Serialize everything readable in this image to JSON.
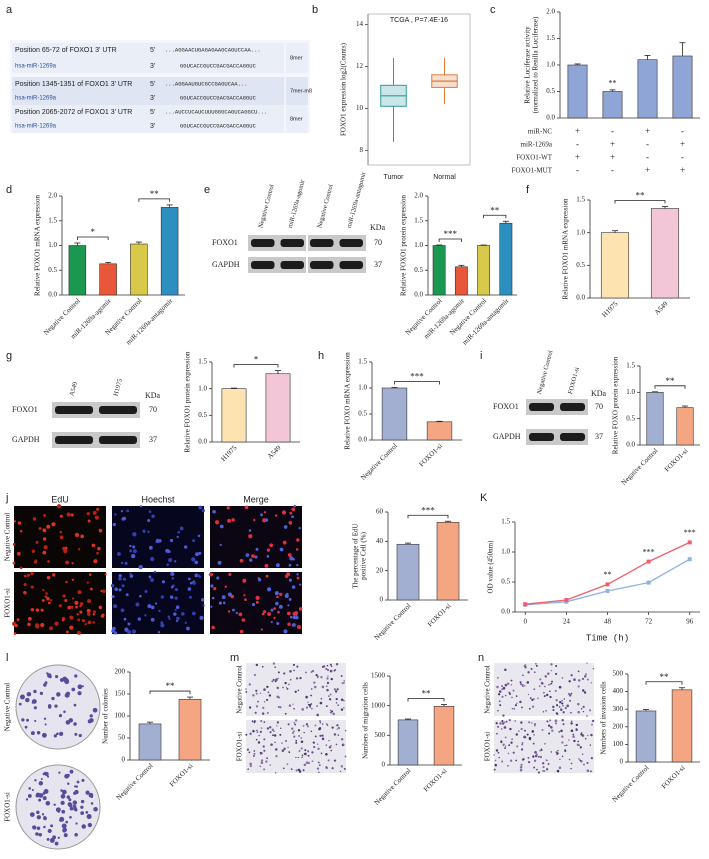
{
  "panel_labels": [
    "a",
    "b",
    "c",
    "d",
    "e",
    "f",
    "g",
    "h",
    "i",
    "j",
    "K",
    "l",
    "m",
    "n"
  ],
  "alignment": {
    "rows": [
      {
        "site": "Position 65-72 of FOXO1 3' UTR",
        "utr_end": "5'",
        "utr_seq": "...AGGAACUGAGAGAAGCAGUCCAA...",
        "mirna": "hsa-miR-1269a",
        "mirna_end": "3'",
        "mirna_seq": "GGUCACCGUCCGACGACCAGGUC",
        "match_type": "8mer"
      },
      {
        "site": "Position 1345-1351 of FOXO1 3' UTR",
        "utr_end": "5'",
        "utr_seq": "...AGGAAUGUCGCCGAGUCAA...",
        "mirna": "hsa-miR-1269a",
        "mirna_end": "3'",
        "mirna_seq": "GGUCACCGUCCGACGACCAGGUC",
        "match_type": "7mer-m8"
      },
      {
        "site": "Position 2065-2072 of FOXO1 3' UTR",
        "utr_end": "5'",
        "utr_seq": "...AUCCUCAUCUUUGGGCAGUCAGGCU...",
        "mirna": "hsa-miR-1269a",
        "mirna_end": "3'",
        "mirna_seq": "GGUCACCGUCCGACGACCAGGUC",
        "match_type": "8mer"
      }
    ]
  },
  "blots": [
    {
      "lanes": [
        "Negative Control",
        "miR-1269a-agomir",
        "Negative Control",
        "miR-1269a-antagomir"
      ],
      "unit": "KDa",
      "proteins": [
        "FOXO1",
        "GAPDH"
      ],
      "sizes": [
        70,
        37
      ]
    },
    {
      "lanes": [
        "A549",
        "H1975"
      ],
      "unit": "KDa",
      "proteins": [
        "FOXO1",
        "GAPDH"
      ],
      "sizes": [
        70,
        37
      ]
    },
    {
      "lanes": [
        "Negative Control",
        "FOXO1-si"
      ],
      "unit": "KDa",
      "proteins": [
        "FOXO1",
        "GAPDH"
      ],
      "sizes": [
        70,
        37
      ]
    }
  ],
  "images": {
    "edu": {
      "columns": [
        "EdU",
        "Hoechst",
        "Merge"
      ],
      "rows": [
        "Negative Control",
        "FOXO1-si"
      ]
    },
    "colony": {
      "rows": [
        "Negative Control",
        "FOXO1-si"
      ]
    },
    "migration": {
      "rows": [
        "Negative Control",
        "FOXO1-si"
      ]
    },
    "invasion": {
      "rows": [
        "Negative Control",
        "FOXO1-si"
      ]
    }
  },
  "chart_data": [
    {
      "type": "box",
      "title": "TCGA , P=7.4E-16",
      "ylabel": "FOXO1 expression log2(Counts)",
      "categories": [
        "Tumor",
        "Normal"
      ],
      "boxes": [
        {
          "min": 8.4,
          "q1": 10.1,
          "median": 10.6,
          "q3": 11.1,
          "max": 12.4
        },
        {
          "min": 10.2,
          "q1": 11.0,
          "median": 11.3,
          "q3": 11.6,
          "max": 12.4
        }
      ],
      "colors": [
        "#2a9d9d",
        "#e07b39"
      ],
      "ylim": [
        7.3,
        14.5
      ],
      "yticks": [
        8,
        10,
        12,
        14
      ]
    },
    {
      "type": "bar",
      "ylabel": [
        "Relative Luciferase activity",
        "(normalized to Renilla Luciferase)"
      ],
      "values": [
        1.0,
        0.5,
        1.1,
        1.17
      ],
      "errors": [
        0.02,
        0.03,
        0.08,
        0.25
      ],
      "colors": [
        "#8fa5d6",
        "#8fa5d6",
        "#8fa5d6",
        "#8fa5d6"
      ],
      "ylim": [
        0,
        2
      ],
      "yticks": [
        {
          "value": 0,
          "label": "0.0"
        },
        0.5,
        {
          "value": 1,
          "label": "1.0"
        },
        1.5,
        {
          "value": 2,
          "label": "2.0"
        }
      ],
      "significance": [
        "**"
      ],
      "conditions": {
        "rows": [
          "miR-NC",
          "miR-1269a",
          "FOXO1-WT",
          "FOXO1-MUT"
        ],
        "marks": [
          [
            "+",
            "-",
            "+",
            "-"
          ],
          [
            "-",
            "+",
            "-",
            "+"
          ],
          [
            "+",
            "+",
            "-",
            "-"
          ],
          [
            "-",
            "-",
            "+",
            "+"
          ]
        ]
      }
    },
    {
      "type": "bar",
      "ylabel": "Relative FOXO1 mRNA expression",
      "categories": [
        "Negative Control",
        "miR-1269a-agomir",
        "Negative Control",
        "miR-1269a-antagomir"
      ],
      "values": [
        1.0,
        0.63,
        1.03,
        1.77
      ],
      "errors": [
        0.05,
        0.03,
        0.04,
        0.05
      ],
      "colors": [
        "#1a9850",
        "#e8573a",
        "#d8c94a",
        "#2c8fc0"
      ],
      "ylim": [
        0,
        2
      ],
      "yticks": [
        {
          "value": 0,
          "label": "0.0"
        },
        0.5,
        {
          "value": 1,
          "label": "1.0"
        },
        1.5,
        {
          "value": 2,
          "label": "2.0"
        }
      ],
      "significance": [
        "*",
        "**"
      ]
    },
    {
      "type": "bar",
      "ylabel": "Relative FOXO1 protein expression",
      "categories": [
        "Negative Control",
        "miR-1269a-agomir",
        "Negative Control",
        "miR-1269a-antagomir"
      ],
      "values": [
        1.0,
        0.57,
        1.0,
        1.45
      ],
      "errors": [
        0.01,
        0.03,
        0.01,
        0.04
      ],
      "colors": [
        "#1a9850",
        "#e8573a",
        "#d8c94a",
        "#2c8fc0"
      ],
      "ylim": [
        0,
        2
      ],
      "yticks": [
        {
          "value": 0,
          "label": "0.0"
        },
        0.5,
        {
          "value": 1,
          "label": "1.0"
        },
        1.5,
        {
          "value": 2,
          "label": "2.0"
        }
      ],
      "significance": [
        "***",
        "**"
      ]
    },
    {
      "type": "bar",
      "ylabel": "Relative FOXO1 mRNA expression",
      "categories": [
        "H1975",
        "A549"
      ],
      "values": [
        1.0,
        1.37
      ],
      "errors": [
        0.03,
        0.03
      ],
      "colors": [
        "#fde3b0",
        "#f2c6d6"
      ],
      "ylim": [
        0,
        1.5
      ],
      "yticks": [
        {
          "value": 0,
          "label": "0.0"
        },
        0.5,
        {
          "value": 1,
          "label": "1.0"
        },
        1.5
      ],
      "significance": [
        "**"
      ]
    },
    {
      "type": "bar",
      "ylabel": "Relative FOXO1 protein expression",
      "categories": [
        "H1975",
        "A549"
      ],
      "values": [
        1.0,
        1.28
      ],
      "errors": [
        0.01,
        0.06
      ],
      "colors": [
        "#fde3b0",
        "#f2c6d6"
      ],
      "ylim": [
        0,
        1.5
      ],
      "yticks": [
        {
          "value": 0,
          "label": "0.0"
        },
        0.5,
        {
          "value": 1,
          "label": "1.0"
        },
        1.5
      ],
      "significance": [
        "*"
      ]
    },
    {
      "type": "bar",
      "ylabel": "Relative FOXO mRNA expression",
      "categories": [
        "Negative Control",
        "FOXO1-si"
      ],
      "values": [
        1.0,
        0.35
      ],
      "errors": [
        0.01,
        0.01
      ],
      "colors": [
        "#a3afd0",
        "#f4a582"
      ],
      "ylim": [
        0,
        1.5
      ],
      "yticks": [
        {
          "value": 0,
          "label": "0.0"
        },
        0.5,
        {
          "value": 1,
          "label": "1.0"
        },
        1.5
      ],
      "significance": [
        "***"
      ]
    },
    {
      "type": "bar",
      "ylabel": "Relative FOXO protein expression",
      "categories": [
        "Negative Control",
        "FOXO1-si"
      ],
      "values": [
        1.0,
        0.71
      ],
      "errors": [
        0.01,
        0.03
      ],
      "colors": [
        "#a3afd0",
        "#f4a582"
      ],
      "ylim": [
        0,
        1.5
      ],
      "yticks": [
        {
          "value": 0,
          "label": "0.0"
        },
        0.5,
        {
          "value": 1,
          "label": "1.0"
        },
        1.5
      ],
      "significance": [
        "**"
      ]
    },
    {
      "type": "bar",
      "ylabel": [
        "The percentage of EdU",
        "positive Cell (%)"
      ],
      "categories": [
        "Negative Control",
        "FOXO1-si"
      ],
      "values": [
        38,
        53
      ],
      "errors": [
        0.8,
        0.7
      ],
      "colors": [
        "#a3afd0",
        "#f4a582"
      ],
      "ylim": [
        0,
        60
      ],
      "yticks": [
        0,
        20,
        40,
        60
      ],
      "significance": [
        "***"
      ]
    },
    {
      "type": "line",
      "xlabel": "Time (h)",
      "ylabel": "OD value (450nm)",
      "x": [
        0,
        24,
        48,
        72,
        96
      ],
      "series": [
        {
          "color": "#8fb3e3",
          "values": [
            0.12,
            0.17,
            0.35,
            0.49,
            0.88
          ]
        },
        {
          "color": "#f0606a",
          "values": [
            0.13,
            0.2,
            0.46,
            0.84,
            1.16
          ]
        }
      ],
      "xlim": [
        -6,
        102
      ],
      "xticks": [
        0,
        24,
        48,
        72,
        96
      ],
      "ylim": [
        0,
        1.5
      ],
      "yticks": [
        {
          "value": 0,
          "label": "0.0"
        },
        0.5,
        {
          "value": 1,
          "label": "1.0"
        },
        1.5
      ],
      "significance": [
        "**",
        "***",
        "***"
      ]
    },
    {
      "type": "bar",
      "ylabel": "Number of colonies",
      "categories": [
        "Negative Control",
        "FOXO1-si"
      ],
      "values": [
        82,
        138
      ],
      "errors": [
        4,
        5
      ],
      "colors": [
        "#a3afd0",
        "#f4a582"
      ],
      "ylim": [
        0,
        200
      ],
      "yticks": [
        0,
        50,
        100,
        150,
        200
      ],
      "significance": [
        "**"
      ]
    },
    {
      "type": "bar",
      "ylabel": "Numbers of migration cells",
      "categories": [
        "Negative Control",
        "FOXO1-si"
      ],
      "values": [
        760,
        990
      ],
      "errors": [
        15,
        30
      ],
      "colors": [
        "#a3afd0",
        "#f4a582"
      ],
      "ylim": [
        0,
        1500
      ],
      "yticks": [
        0,
        500,
        1000,
        1500
      ],
      "significance": [
        "**"
      ]
    },
    {
      "type": "bar",
      "ylabel": "Numbers of  invasion cells",
      "categories": [
        "Negative Control",
        "FOXO1-si"
      ],
      "values": [
        290,
        410
      ],
      "errors": [
        8,
        12
      ],
      "colors": [
        "#a3afd0",
        "#f4a582"
      ],
      "ylim": [
        0,
        500
      ],
      "yticks": [
        0,
        100,
        200,
        300,
        400,
        500
      ],
      "significance": [
        "**"
      ]
    }
  ]
}
